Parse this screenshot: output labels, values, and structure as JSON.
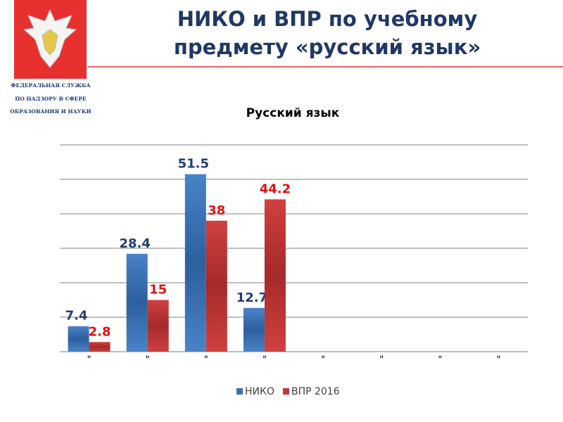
{
  "slide": {
    "title_lines": [
      "НИКО и ВПР по учебному",
      "предмету «русский язык»"
    ],
    "logo_lines": [
      "ФЕДЕРАЛЬНАЯ СЛУЖБА",
      "ПО НАДЗОРУ В СФЕРЕ",
      "ОБРАЗОВАНИЯ И НАУКИ"
    ]
  },
  "chart_data": {
    "type": "bar",
    "title": "Русский язык",
    "categories": [
      "\"",
      "\"",
      "\"",
      "\"",
      "\"",
      "\"",
      "\"",
      "\""
    ],
    "series": [
      {
        "name": "НИКО",
        "color": "#3a6fb6",
        "label_color": "#1f3f6e",
        "values": [
          7.4,
          28.4,
          51.5,
          12.7,
          null,
          null,
          null,
          null
        ]
      },
      {
        "name": "ВПР 2016",
        "color": "#c0393b",
        "label_color": "#e01010",
        "values": [
          2.8,
          15,
          38,
          44.2,
          null,
          null,
          null,
          null
        ]
      }
    ],
    "ylim": [
      0,
      60
    ],
    "yticks": [
      0,
      10,
      20,
      30,
      40,
      50,
      60
    ],
    "grid": true,
    "legend": "bottom"
  }
}
